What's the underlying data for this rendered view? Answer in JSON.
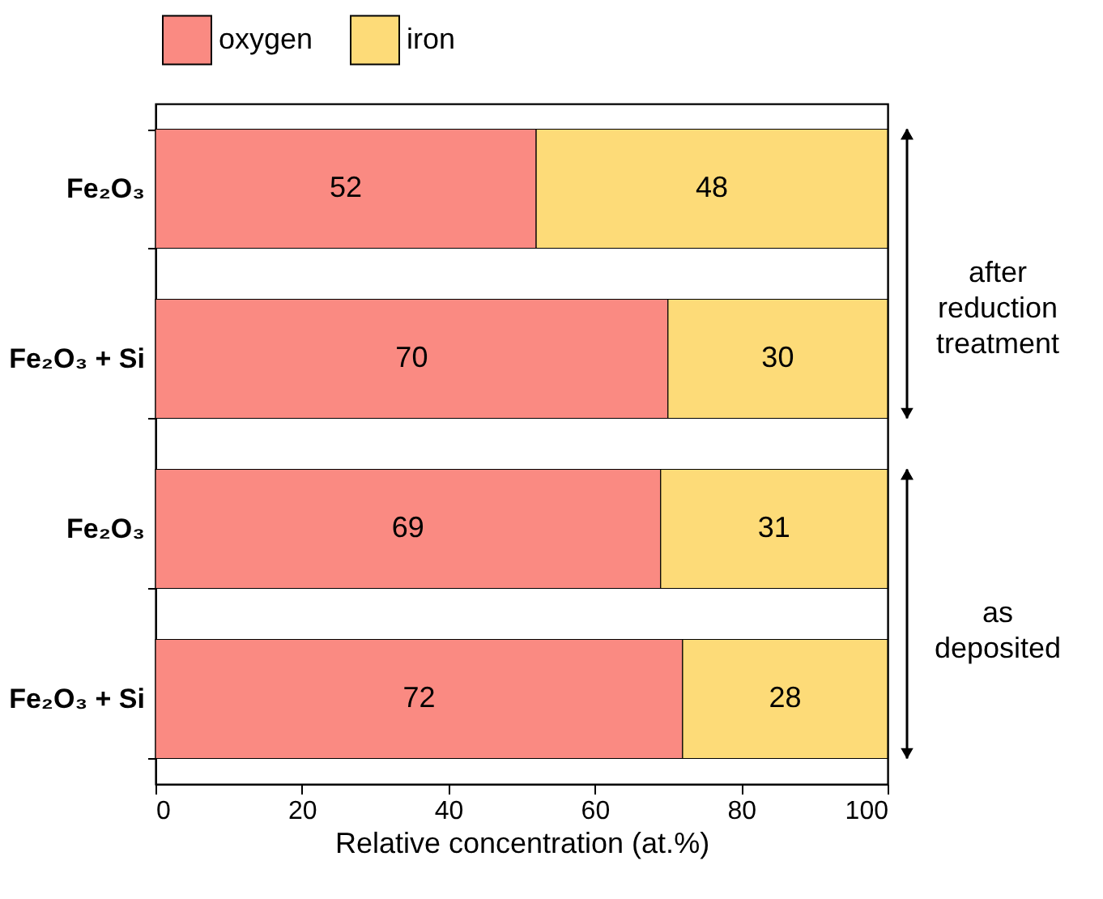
{
  "chart_data": {
    "type": "bar",
    "orientation": "horizontal",
    "stacked": true,
    "categories": [
      "Fe₂O₃",
      "Fe₂O₃ + Si",
      "Fe₂O₃",
      "Fe₂O₃ + Si"
    ],
    "series": [
      {
        "name": "oxygen",
        "color": "#fa8a82",
        "values": [
          52,
          70,
          69,
          72
        ]
      },
      {
        "name": "iron",
        "color": "#fddb78",
        "values": [
          48,
          30,
          31,
          28
        ]
      }
    ],
    "xlabel": "Relative concentration (at.%)",
    "xlim": [
      0,
      100
    ],
    "xticks": [
      0,
      20,
      40,
      60,
      80,
      100
    ],
    "annotations": [
      "after reduction treatment",
      "as deposited"
    ],
    "data_labels": true,
    "legend": "top",
    "grid": false
  }
}
